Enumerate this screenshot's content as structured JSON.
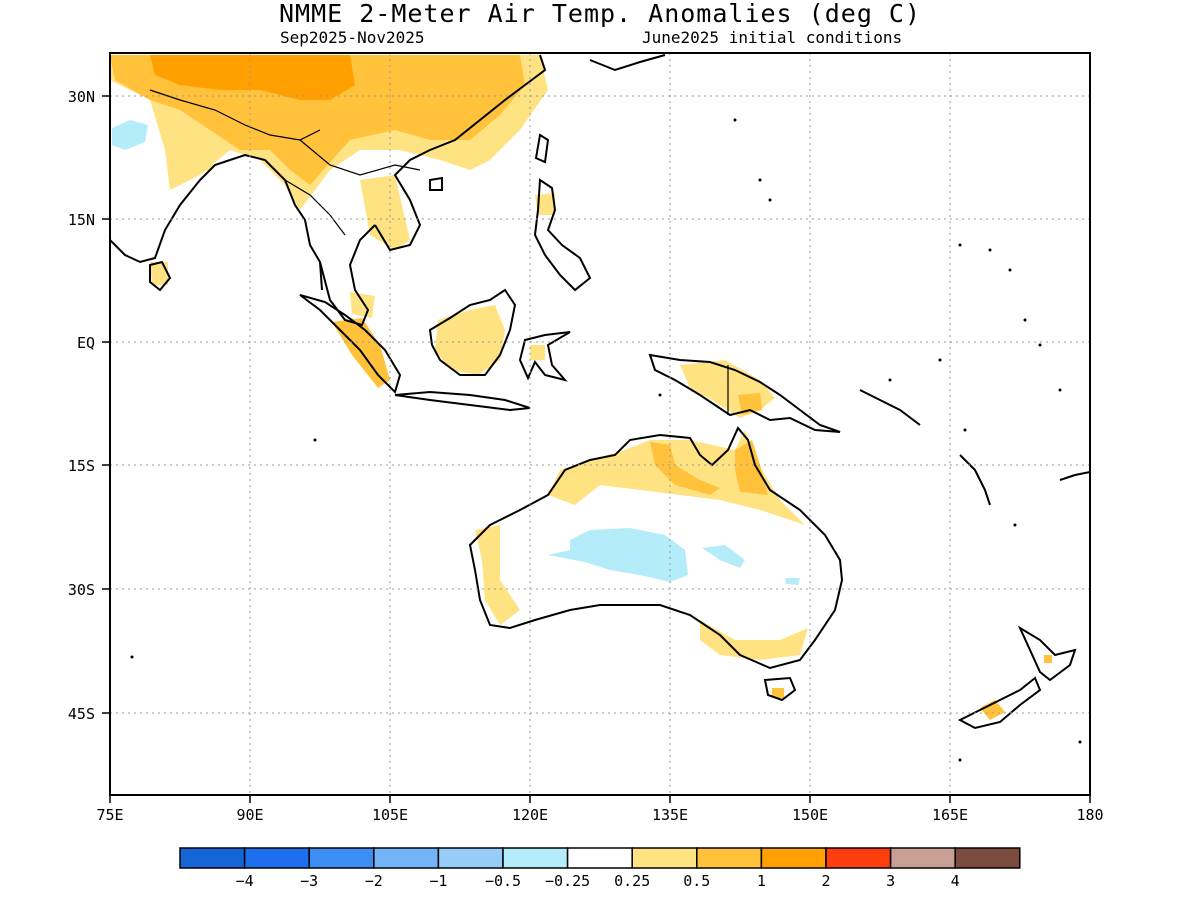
{
  "title": "NMME 2-Meter Air Temp. Anomalies (deg C)",
  "period": "Sep2025-Nov2025",
  "init": "June2025 initial conditions",
  "lat_labels": [
    "30N",
    "15N",
    "EQ",
    "15S",
    "30S",
    "45S"
  ],
  "lon_labels": [
    "75E",
    "90E",
    "105E",
    "120E",
    "135E",
    "150E",
    "165E",
    "180"
  ],
  "colorbar": {
    "colors": [
      "#1565d6",
      "#1e6ff0",
      "#3c8ef5",
      "#73b3f7",
      "#96cdf8",
      "#b4ecfa",
      "#ffffff",
      "#ffe383",
      "#ffc23a",
      "#ffa000",
      "#ff3e0e",
      "#c99e93",
      "#7b4c3f"
    ],
    "labels": [
      "-4",
      "-3",
      "-2",
      "-1",
      "-0.5",
      "-0.25",
      "0.25",
      "0.5",
      "1",
      "2",
      "3",
      "4"
    ]
  },
  "map": {
    "lon_range": [
      75,
      180
    ],
    "lat_range": [
      -55,
      35
    ],
    "land_color": "#000000",
    "anomaly_colors": {
      "slight_warm": "#ffe383",
      "warm": "#ffc23a",
      "very_warm": "#ffa000",
      "slight_cool": "#b4ecfa"
    }
  }
}
